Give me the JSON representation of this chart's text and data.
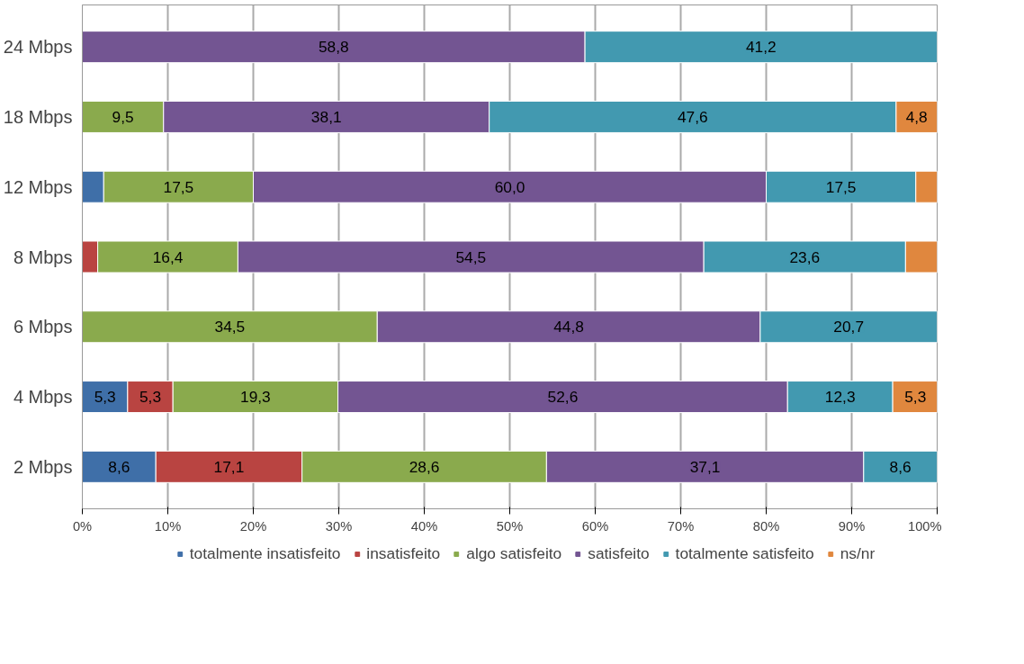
{
  "chart_data": {
    "type": "bar",
    "orientation": "horizontal",
    "stacked": true,
    "categories": [
      "24 Mbps",
      "18 Mbps",
      "12 Mbps",
      "8 Mbps",
      "6 Mbps",
      "4 Mbps",
      "2 Mbps"
    ],
    "series": [
      {
        "name": "totalmente insatisfeito",
        "color": "#3f6fa8",
        "values": [
          0,
          0,
          2.5,
          0,
          0,
          5.3,
          8.6
        ],
        "value_labels": [
          null,
          null,
          null,
          null,
          null,
          "5,3",
          "8,6"
        ]
      },
      {
        "name": "insatisfeito",
        "color": "#b94441",
        "values": [
          0,
          0,
          0,
          1.8,
          0,
          5.3,
          17.1
        ],
        "value_labels": [
          null,
          null,
          null,
          null,
          null,
          "5,3",
          "17,1"
        ]
      },
      {
        "name": "algo satisfeito",
        "color": "#8aaa4d",
        "values": [
          0,
          9.5,
          17.5,
          16.4,
          34.5,
          19.3,
          28.6
        ],
        "value_labels": [
          null,
          "9,5",
          "17,5",
          "16,4",
          "34,5",
          "19,3",
          "28,6"
        ]
      },
      {
        "name": "satisfeito",
        "color": "#735592",
        "values": [
          58.8,
          38.1,
          60.0,
          54.5,
          44.8,
          52.6,
          37.1
        ],
        "value_labels": [
          "58,8",
          "38,1",
          "60,0",
          "54,5",
          "44,8",
          "52,6",
          "37,1"
        ]
      },
      {
        "name": "totalmente satisfeito",
        "color": "#4299b0",
        "values": [
          41.2,
          47.6,
          17.5,
          23.6,
          20.7,
          12.3,
          8.6
        ],
        "value_labels": [
          "41,2",
          "47,6",
          "17,5",
          "23,6",
          "20,7",
          "12,3",
          "8,6"
        ]
      },
      {
        "name": "ns/nr",
        "color": "#e0873e",
        "values": [
          0,
          4.8,
          2.5,
          3.7,
          0,
          5.3,
          0
        ],
        "value_labels": [
          null,
          "4,8",
          null,
          null,
          null,
          "5,3",
          null
        ]
      }
    ],
    "xlim": [
      0,
      100
    ],
    "xticks": [
      {
        "value": 0,
        "label": "0%"
      },
      {
        "value": 10,
        "label": "10%"
      },
      {
        "value": 20,
        "label": "20%"
      },
      {
        "value": 30,
        "label": "30%"
      },
      {
        "value": 40,
        "label": "40%"
      },
      {
        "value": 50,
        "label": "50%"
      },
      {
        "value": 60,
        "label": "60%"
      },
      {
        "value": 70,
        "label": "70%"
      },
      {
        "value": 80,
        "label": "80%"
      },
      {
        "value": 90,
        "label": "90%"
      },
      {
        "value": 100,
        "label": "100%"
      }
    ],
    "grid": "x",
    "legend": "bottom"
  }
}
